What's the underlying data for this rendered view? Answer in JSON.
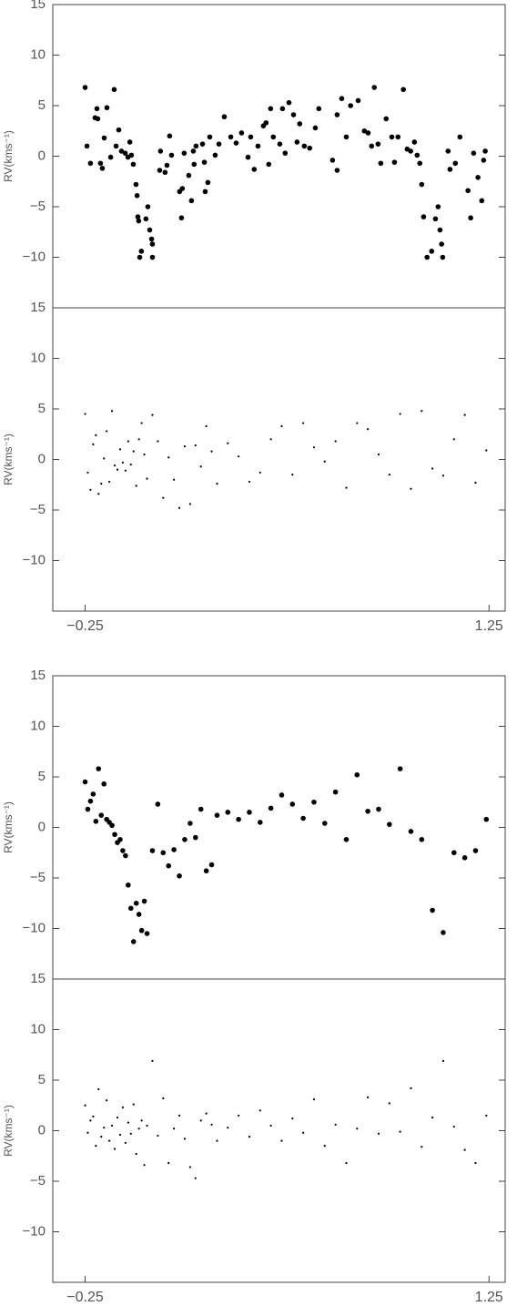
{
  "chart_data": [
    {
      "type": "scatter",
      "ylabel": "RV(kms⁻¹)",
      "color": "#000000",
      "x": [
        -0.25,
        -0.243,
        -0.23,
        -0.213,
        -0.206,
        -0.203,
        -0.193,
        -0.186,
        -0.179,
        -0.169,
        -0.155,
        -0.142,
        -0.135,
        -0.125,
        -0.115,
        -0.101,
        -0.091,
        -0.084,
        -0.078,
        -0.071,
        -0.061,
        -0.057,
        -0.054,
        -0.051,
        -0.047,
        -0.041,
        -0.024,
        -0.017,
        -0.01,
        -0.003,
        0.0,
        0.0,
        0.03,
        0.027,
        0.047,
        0.054,
        0.064,
        0.071,
        0.101,
        0.108,
        0.111,
        0.118,
        0.135,
        0.145,
        0.152,
        0.155,
        0.162,
        0.186,
        0.193,
        0.196,
        0.206,
        0.213,
        0.233,
        0.247,
        0.267,
        0.291,
        0.311,
        0.331,
        0.355,
        0.365,
        0.378,
        0.392,
        0.412,
        0.422,
        0.432,
        0.439,
        0.449,
        0.473,
        0.483,
        0.493,
        0.507,
        0.524,
        0.537,
        0.547,
        0.564,
        0.584,
        0.605,
        0.618,
        0.669,
        0.686,
        0.686,
        0.703,
        0.72,
        0.736,
        0.764,
        0.787,
        0.801,
        0.814,
        0.824,
        0.838,
        0.848,
        0.868,
        0.889,
        0.899,
        0.912,
        0.932,
        0.946,
        0.959,
        0.973,
        0.983,
        0.993,
        1.0,
        1.007,
        1.02,
        1.037,
        1.051,
        1.061,
        1.068,
        1.074,
        1.078,
        1.098,
        1.105,
        1.125,
        1.142,
        1.172,
        1.182,
        1.193,
        1.209,
        1.223,
        1.23,
        1.236
      ],
      "values": [
        6.8,
        1.0,
        -0.7,
        3.8,
        4.7,
        3.7,
        -0.7,
        -1.2,
        1.8,
        4.8,
        -0.1,
        6.6,
        1.0,
        2.6,
        0.5,
        0.3,
        -0.1,
        1.4,
        0.1,
        -0.8,
        -2.8,
        -3.9,
        -6,
        -6.4,
        -10,
        -9.4,
        -6.2,
        -5,
        -7.3,
        -8.2,
        -8.7,
        -10,
        0.5,
        -1.4,
        -1.6,
        -0.9,
        2,
        0.1,
        -3.5,
        -6.1,
        -3.2,
        0.3,
        -1.9,
        -4.4,
        0.5,
        -0.8,
        1,
        1.2,
        -0.6,
        -3.5,
        -2.6,
        1.9,
        0.1,
        1.2,
        3.9,
        1.9,
        1.3,
        2.3,
        -0.1,
        1.9,
        -1.3,
        1,
        3,
        3.3,
        -0.8,
        4.7,
        1.9,
        1.2,
        4.7,
        0.3,
        5.3,
        4.1,
        1.4,
        3.2,
        1,
        0.8,
        2.8,
        4.7,
        -0.4,
        -1.4,
        4.1,
        5.7,
        1.9,
        5,
        5.5,
        2.5,
        2.3,
        1,
        6.8,
        1.2,
        -0.7,
        3.7,
        1.9,
        -0.6,
        1.9,
        6.6,
        0.7,
        0.5,
        1.4,
        0.1,
        -0.7,
        -2.8,
        -6,
        -10,
        -9.4,
        -6.2,
        -5,
        -7.3,
        -8.7,
        -10,
        0.5,
        -1.3,
        -0.7,
        1.9,
        -3.4,
        -6.1,
        0.3,
        -2.1,
        -4.4,
        -0.4,
        0.5
      ],
      "xlim": [
        -0.37,
        1.31
      ],
      "ylim": [
        -15,
        15
      ],
      "yticks": [
        {
          "value": -10,
          "label": "−10"
        },
        {
          "value": -5,
          "label": "−5"
        },
        0,
        5,
        10,
        15
      ]
    },
    {
      "type": "scatter",
      "ylabel": "RV(kms⁻¹)",
      "color": "#000000",
      "x": [
        -0.25,
        -0.24,
        -0.23,
        -0.22,
        -0.21,
        -0.2,
        -0.19,
        -0.18,
        -0.17,
        -0.16,
        -0.15,
        -0.14,
        -0.13,
        -0.12,
        -0.11,
        -0.1,
        -0.09,
        -0.08,
        -0.07,
        -0.06,
        -0.05,
        -0.04,
        -0.03,
        -0.02,
        0.0,
        0.02,
        0.04,
        0.06,
        0.08,
        0.1,
        0.12,
        0.14,
        0.16,
        0.18,
        0.2,
        0.22,
        0.24,
        0.28,
        0.32,
        0.36,
        0.4,
        0.44,
        0.48,
        0.52,
        0.56,
        0.6,
        0.64,
        0.68,
        0.72,
        0.76,
        0.8,
        0.84,
        0.88,
        0.92,
        0.96,
        1.0,
        1.04,
        1.08,
        1.12,
        1.16,
        1.2,
        1.24
      ],
      "values": [
        4.5,
        -1.3,
        -3.0,
        1.5,
        2.4,
        -3.4,
        -2.4,
        0.1,
        2.8,
        -2.2,
        4.8,
        -0.6,
        -1.0,
        1.0,
        -0.3,
        -1.1,
        1.8,
        -0.5,
        0.8,
        -2.6,
        2.0,
        3.6,
        0.5,
        -1.9,
        4.4,
        1.8,
        -3.8,
        0.2,
        -2.0,
        -4.8,
        1.3,
        -4.4,
        1.4,
        -0.7,
        3.3,
        0.8,
        -2.4,
        1.6,
        0.3,
        -2.2,
        -1.3,
        2.0,
        3.3,
        -1.5,
        3.6,
        1.2,
        -0.2,
        1.8,
        -2.8,
        3.6,
        3.0,
        0.5,
        -1.5,
        4.5,
        -2.9,
        4.8,
        -0.9,
        -1.6,
        2.0,
        4.4,
        -2.3,
        0.9
      ],
      "xlim": [
        -0.37,
        1.31
      ],
      "ylim": [
        -15,
        15
      ],
      "xticks": [
        {
          "value": -0.25,
          "label": "−0.25"
        },
        1.25
      ],
      "yticks": [
        {
          "value": -10,
          "label": "−10"
        },
        {
          "value": -5,
          "label": "−5"
        },
        0,
        5,
        10,
        15
      ]
    },
    {
      "type": "scatter",
      "ylabel": "RV(kms⁻¹)",
      "color": "#000000",
      "x": [
        -0.25,
        -0.24,
        -0.23,
        -0.22,
        -0.21,
        -0.2,
        -0.19,
        -0.18,
        -0.17,
        -0.16,
        -0.15,
        -0.14,
        -0.13,
        -0.12,
        -0.11,
        -0.1,
        -0.09,
        -0.08,
        -0.07,
        -0.06,
        -0.05,
        -0.04,
        -0.03,
        -0.02,
        0.0,
        0.02,
        0.04,
        0.06,
        0.08,
        0.1,
        0.12,
        0.14,
        0.16,
        0.18,
        0.2,
        0.22,
        0.24,
        0.28,
        0.32,
        0.36,
        0.4,
        0.44,
        0.48,
        0.52,
        0.56,
        0.6,
        0.64,
        0.68,
        0.72,
        0.76,
        0.8,
        0.84,
        0.88,
        0.92,
        0.96,
        1.0,
        1.04,
        1.08,
        1.12,
        1.16,
        1.2,
        1.24
      ],
      "values": [
        4.5,
        1.8,
        2.6,
        3.3,
        0.6,
        5.8,
        1.2,
        4.3,
        0.8,
        0.5,
        0.2,
        -0.7,
        -1.5,
        -1.2,
        -2.3,
        -2.8,
        -5.7,
        -8.0,
        -11.3,
        -7.5,
        -8.6,
        -10.2,
        -7.3,
        -10.5,
        -2.3,
        2.3,
        -2.5,
        -3.8,
        -2.2,
        -4.8,
        -1.2,
        0.4,
        -1.0,
        1.8,
        -4.3,
        -3.7,
        1.2,
        1.5,
        0.8,
        1.5,
        0.5,
        1.9,
        3.2,
        2.3,
        0.9,
        2.5,
        0.4,
        3.5,
        -1.2,
        5.2,
        1.6,
        1.8,
        0.3,
        5.8,
        -0.4,
        -1.2,
        -8.2,
        -10.4,
        -2.5,
        -3.0,
        -2.3,
        0.8
      ],
      "xlim": [
        -0.37,
        1.31
      ],
      "ylim": [
        -15,
        15
      ],
      "yticks": [
        {
          "value": -10,
          "label": "−10"
        },
        {
          "value": -5,
          "label": "−5"
        },
        0,
        5,
        10,
        15
      ]
    },
    {
      "type": "scatter",
      "ylabel": "RV(kms⁻¹)",
      "color": "#000000",
      "x": [
        -0.25,
        -0.24,
        -0.23,
        -0.22,
        -0.21,
        -0.2,
        -0.19,
        -0.18,
        -0.17,
        -0.16,
        -0.15,
        -0.14,
        -0.13,
        -0.12,
        -0.11,
        -0.1,
        -0.09,
        -0.08,
        -0.07,
        -0.06,
        -0.05,
        -0.04,
        -0.03,
        -0.02,
        0.0,
        0.02,
        0.04,
        0.06,
        0.08,
        0.1,
        0.12,
        0.14,
        0.16,
        0.18,
        0.2,
        0.22,
        0.24,
        0.28,
        0.32,
        0.36,
        0.4,
        0.44,
        0.48,
        0.52,
        0.56,
        0.6,
        0.64,
        0.68,
        0.72,
        0.76,
        0.8,
        0.84,
        0.88,
        0.92,
        0.96,
        1.0,
        1.04,
        1.08,
        1.12,
        1.16,
        1.2,
        1.24
      ],
      "values": [
        2.5,
        -0.2,
        1.0,
        1.4,
        -1.5,
        4.1,
        -0.6,
        0.3,
        3.0,
        -1.0,
        0.5,
        -1.8,
        1.3,
        -0.4,
        2.3,
        -1.2,
        0.8,
        -0.3,
        2.6,
        -2.3,
        0.2,
        1.0,
        -3.4,
        0.5,
        6.9,
        -0.5,
        3.2,
        -3.2,
        0.2,
        1.5,
        -0.8,
        -3.6,
        -4.7,
        1.0,
        1.7,
        0.6,
        -1.0,
        0.3,
        1.5,
        -0.6,
        2.0,
        0.5,
        -1.0,
        1.2,
        -0.2,
        3.1,
        -1.5,
        0.6,
        -3.2,
        0.2,
        3.3,
        -0.3,
        2.7,
        -0.1,
        4.2,
        -1.6,
        1.3,
        6.9,
        0.4,
        -1.9,
        -3.2,
        1.5
      ],
      "xlim": [
        -0.37,
        1.31
      ],
      "ylim": [
        -15,
        15
      ],
      "xticks": [
        {
          "value": -0.25,
          "label": "−0.25"
        },
        1.25
      ],
      "yticks": [
        {
          "value": -10,
          "label": "−10"
        },
        {
          "value": -5,
          "label": "−5"
        },
        0,
        5,
        10,
        15
      ]
    }
  ]
}
